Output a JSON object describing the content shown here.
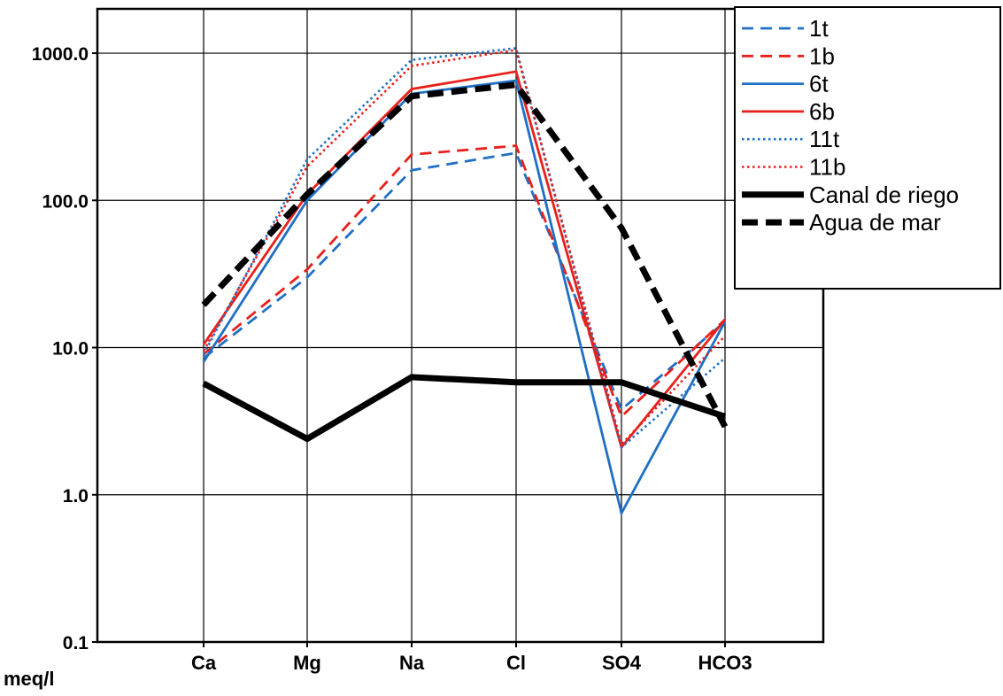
{
  "chart_data": {
    "type": "line",
    "title": "",
    "unit_label": "meq/l",
    "categories": [
      "Ca",
      "Mg",
      "Na",
      "Cl",
      "SO4",
      "HCO3"
    ],
    "y_scale": "log",
    "ylim": [
      0.1,
      2000
    ],
    "y_ticks": [
      0.1,
      1,
      10,
      100,
      1000
    ],
    "y_tick_labels": [
      "0.1",
      "1.0",
      "10.0",
      "100.0",
      "1000.0"
    ],
    "grid": true,
    "legend_position": "top-right",
    "series": [
      {
        "name": "1t",
        "color": "#1f6fc4",
        "style": "dashed",
        "values": [
          8.5,
          30,
          160,
          210,
          3.8,
          15
        ]
      },
      {
        "name": "1b",
        "color": "#e8201c",
        "style": "dashed",
        "values": [
          9,
          34,
          205,
          235,
          3.4,
          15.5
        ]
      },
      {
        "name": "6t",
        "color": "#1f6fc4",
        "style": "solid",
        "values": [
          8,
          100,
          530,
          650,
          0.75,
          15
        ]
      },
      {
        "name": "6b",
        "color": "#e8201c",
        "style": "solid",
        "values": [
          10.5,
          110,
          570,
          750,
          2.1,
          15.5
        ]
      },
      {
        "name": "11t",
        "color": "#1f6fc4",
        "style": "dotted",
        "values": [
          9,
          190,
          900,
          1080,
          2.1,
          8.5
        ]
      },
      {
        "name": "11b",
        "color": "#e8201c",
        "style": "dotted",
        "values": [
          9.5,
          170,
          820,
          1050,
          2.2,
          12
        ]
      },
      {
        "name": "Canal de riego",
        "color": "#000000",
        "style": "thick-solid",
        "values": [
          5.7,
          2.4,
          6.3,
          5.8,
          5.8,
          3.4
        ]
      },
      {
        "name": "Agua de mar",
        "color": "#000000",
        "style": "thick-dashed",
        "values": [
          19.5,
          110,
          510,
          610,
          65,
          2.9
        ]
      }
    ]
  }
}
